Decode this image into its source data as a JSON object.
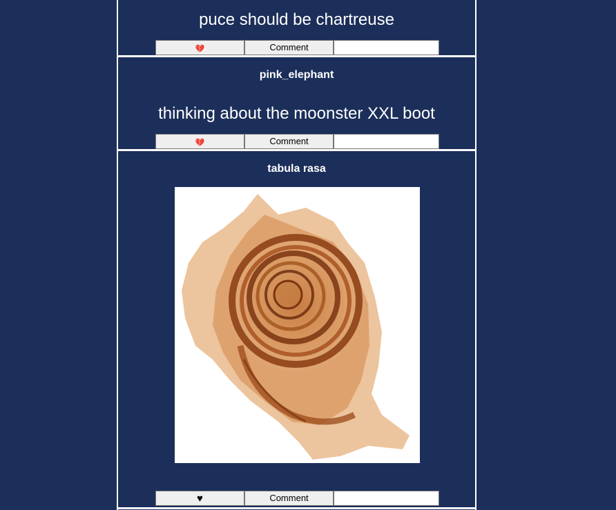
{
  "posts": [
    {
      "author": "",
      "text": "puce should be chartreuse",
      "like_icon": "broken-heart-icon",
      "like_glyph": "💔",
      "comment_label": "Comment",
      "comment_value": ""
    },
    {
      "author": "pink_elephant",
      "text": "thinking about the moonster XXL boot",
      "like_icon": "broken-heart-icon",
      "like_glyph": "💔",
      "comment_label": "Comment",
      "comment_value": ""
    },
    {
      "author": "tabula rasa",
      "image": "spiral-fossil-photo",
      "like_icon": "heart-icon",
      "like_glyph": "♥",
      "comment_label": "Comment",
      "comment_value": ""
    }
  ],
  "colors": {
    "background": "#1c2f5a",
    "divider": "#ffffff",
    "button": "#efefef",
    "fossil": "#a0521c"
  }
}
